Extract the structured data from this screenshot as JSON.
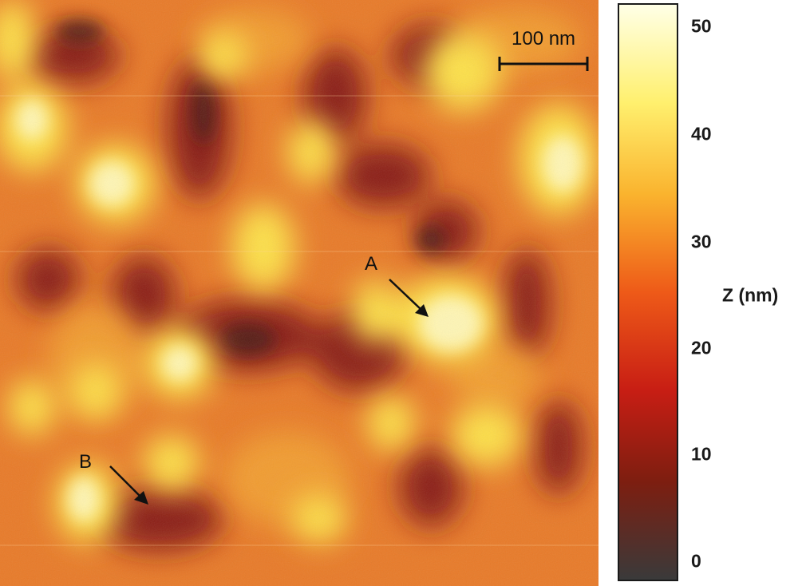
{
  "image": {
    "scale_bar_label": "100 nm",
    "markers": [
      {
        "label": "A"
      },
      {
        "label": "B"
      }
    ]
  },
  "colorbar": {
    "title": "Z (nm)",
    "ticks": [
      "50",
      "40",
      "30",
      "20",
      "10",
      "0"
    ],
    "colors": [
      "#3a3a3a",
      "#7d1e10",
      "#c81e14",
      "#ee5a18",
      "#fab32e",
      "#fff06e",
      "#ffffe6"
    ]
  }
}
